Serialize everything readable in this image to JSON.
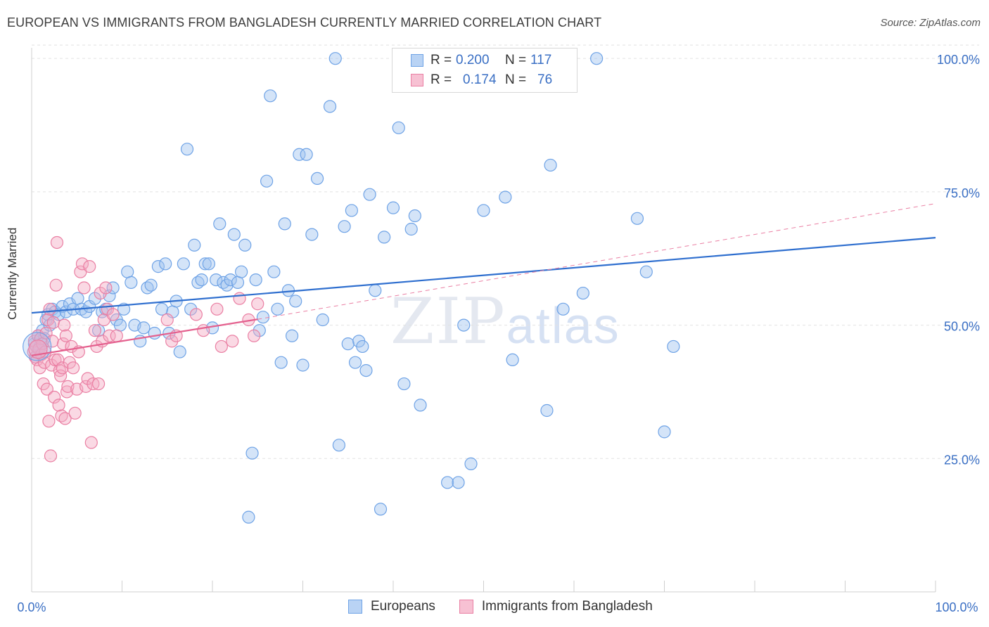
{
  "title": "EUROPEAN VS IMMIGRANTS FROM BANGLADESH CURRENTLY MARRIED CORRELATION CHART",
  "source": "Source: ZipAtlas.com",
  "watermark": {
    "zip": "ZIP",
    "atlas": "atlas"
  },
  "legend": {
    "r_label": "R =",
    "n_label": "N =",
    "series": [
      {
        "name": "Europeans",
        "r": "0.200",
        "n": "117",
        "color": "#6fa3e6",
        "fill": "#b9d3f4"
      },
      {
        "name": "Immigrants from Bangladesh",
        "r": "0.174",
        "n": "76",
        "color": "#ea7fa3",
        "fill": "#f7c1d3"
      }
    ]
  },
  "chart_data": {
    "type": "scatter",
    "title": "EUROPEAN VS IMMIGRANTS FROM BANGLADESH CURRENTLY MARRIED CORRELATION CHART",
    "xlabel": "",
    "ylabel": "Currently Married",
    "xlim": [
      0,
      100
    ],
    "ylim": [
      0,
      102
    ],
    "x_tick_labels": [
      "0.0%",
      "100.0%"
    ],
    "y_ticks": [
      25,
      50,
      75,
      100
    ],
    "y_tick_labels": [
      "25.0%",
      "50.0%",
      "75.0%",
      "100.0%"
    ],
    "grid": true,
    "series": [
      {
        "name": "Europeans",
        "color": "#6fa3e6",
        "trend": {
          "x": [
            0,
            100
          ],
          "y": [
            52.3,
            66.4
          ],
          "style": "solid"
        },
        "points": [
          [
            0.3,
            46.5
          ],
          [
            0.5,
            44
          ],
          [
            0.7,
            48
          ],
          [
            0.9,
            46
          ],
          [
            1.2,
            49
          ],
          [
            1.4,
            47.5
          ],
          [
            1.6,
            51
          ],
          [
            1.8,
            52
          ],
          [
            2.0,
            50
          ],
          [
            2.3,
            53
          ],
          [
            2.6,
            52.5
          ],
          [
            3.0,
            52
          ],
          [
            3.4,
            53.5
          ],
          [
            3.8,
            52.5
          ],
          [
            4.2,
            54
          ],
          [
            4.6,
            53
          ],
          [
            5.1,
            55
          ],
          [
            5.5,
            53
          ],
          [
            6.0,
            52.5
          ],
          [
            6.4,
            53.5
          ],
          [
            7.0,
            55
          ],
          [
            7.4,
            49
          ],
          [
            7.8,
            52.5
          ],
          [
            8.2,
            53
          ],
          [
            8.6,
            55.5
          ],
          [
            9.0,
            57
          ],
          [
            9.4,
            51
          ],
          [
            9.8,
            50
          ],
          [
            10.2,
            53
          ],
          [
            10.6,
            60
          ],
          [
            11.0,
            58
          ],
          [
            11.4,
            50
          ],
          [
            12.0,
            47
          ],
          [
            12.4,
            49.5
          ],
          [
            12.8,
            57
          ],
          [
            13.2,
            57.5
          ],
          [
            13.6,
            48.5
          ],
          [
            14.0,
            61
          ],
          [
            14.4,
            53
          ],
          [
            14.8,
            61.5
          ],
          [
            15.2,
            48.5
          ],
          [
            15.6,
            52.5
          ],
          [
            16.0,
            54.5
          ],
          [
            16.4,
            45
          ],
          [
            16.8,
            61.5
          ],
          [
            17.2,
            83
          ],
          [
            17.6,
            53
          ],
          [
            18.0,
            65
          ],
          [
            18.4,
            58
          ],
          [
            18.8,
            58.5
          ],
          [
            19.2,
            61.5
          ],
          [
            19.6,
            61.5
          ],
          [
            20.0,
            49.5
          ],
          [
            20.4,
            58.5
          ],
          [
            20.8,
            69
          ],
          [
            21.2,
            58
          ],
          [
            21.6,
            57.5
          ],
          [
            22.0,
            58.5
          ],
          [
            22.4,
            67
          ],
          [
            22.8,
            58
          ],
          [
            23.2,
            60
          ],
          [
            23.6,
            65
          ],
          [
            24.0,
            14
          ],
          [
            24.4,
            26
          ],
          [
            24.8,
            58.5
          ],
          [
            25.2,
            49
          ],
          [
            25.6,
            51.5
          ],
          [
            26.0,
            77
          ],
          [
            26.4,
            93
          ],
          [
            26.8,
            60
          ],
          [
            27.2,
            53
          ],
          [
            27.6,
            43
          ],
          [
            28.0,
            69
          ],
          [
            28.4,
            56.5
          ],
          [
            28.8,
            48
          ],
          [
            29.2,
            54.5
          ],
          [
            29.6,
            82
          ],
          [
            30.0,
            42.5
          ],
          [
            30.4,
            82
          ],
          [
            31.0,
            67
          ],
          [
            31.6,
            77.5
          ],
          [
            32.2,
            51
          ],
          [
            33.0,
            91
          ],
          [
            33.6,
            100
          ],
          [
            34.0,
            27.5
          ],
          [
            34.6,
            68.5
          ],
          [
            35.0,
            46.5
          ],
          [
            35.4,
            71.5
          ],
          [
            35.8,
            43
          ],
          [
            36.2,
            47
          ],
          [
            36.6,
            46
          ],
          [
            37.0,
            41.5
          ],
          [
            37.4,
            74.5
          ],
          [
            38.0,
            56.5
          ],
          [
            38.6,
            15.5
          ],
          [
            39.0,
            66.5
          ],
          [
            40.0,
            72
          ],
          [
            40.6,
            87
          ],
          [
            41.2,
            39
          ],
          [
            42.0,
            68
          ],
          [
            42.4,
            70.5
          ],
          [
            43.0,
            35
          ],
          [
            46.0,
            20.5
          ],
          [
            47.2,
            20.5
          ],
          [
            47.8,
            50
          ],
          [
            48.6,
            24
          ],
          [
            50.0,
            71.5
          ],
          [
            52.4,
            74
          ],
          [
            53.2,
            43.5
          ],
          [
            57.0,
            34
          ],
          [
            57.4,
            80
          ],
          [
            58.8,
            53
          ],
          [
            62.5,
            100
          ],
          [
            67.0,
            70
          ],
          [
            61.0,
            56
          ],
          [
            68.0,
            60
          ],
          [
            70.0,
            30
          ],
          [
            71.0,
            46
          ]
        ]
      },
      {
        "name": "Immigrants from Bangladesh",
        "color": "#ea7fa3",
        "trend": {
          "x": [
            0,
            25
          ],
          "y": [
            44.3,
            51.1
          ],
          "style": "solid",
          "extended": {
            "x": [
              25,
              100
            ],
            "y": [
              51.1,
              72.8
            ],
            "style": "dashed"
          }
        },
        "points": [
          [
            0.2,
            45
          ],
          [
            0.3,
            47
          ],
          [
            0.4,
            44
          ],
          [
            0.5,
            46
          ],
          [
            0.6,
            43.5
          ],
          [
            0.7,
            48
          ],
          [
            0.8,
            45.5
          ],
          [
            0.9,
            42
          ],
          [
            1.0,
            47.5
          ],
          [
            1.1,
            44.5
          ],
          [
            1.2,
            46.5
          ],
          [
            1.3,
            39
          ],
          [
            1.4,
            43
          ],
          [
            1.5,
            45
          ],
          [
            1.6,
            48.5
          ],
          [
            1.7,
            38
          ],
          [
            1.8,
            51
          ],
          [
            1.9,
            32
          ],
          [
            2.0,
            53
          ],
          [
            2.1,
            25.5
          ],
          [
            2.2,
            42.5
          ],
          [
            2.3,
            47
          ],
          [
            2.4,
            50.5
          ],
          [
            2.5,
            36.5
          ],
          [
            2.6,
            43.5
          ],
          [
            2.7,
            57.5
          ],
          [
            2.8,
            65.5
          ],
          [
            2.9,
            43.5
          ],
          [
            3.0,
            35
          ],
          [
            3.1,
            41.5
          ],
          [
            3.2,
            40.5
          ],
          [
            3.3,
            33
          ],
          [
            3.4,
            42
          ],
          [
            3.5,
            46.5
          ],
          [
            3.6,
            50
          ],
          [
            3.7,
            32.5
          ],
          [
            3.8,
            48
          ],
          [
            3.9,
            37.5
          ],
          [
            4.0,
            38.5
          ],
          [
            4.2,
            43
          ],
          [
            4.4,
            46
          ],
          [
            4.6,
            42
          ],
          [
            4.8,
            33.5
          ],
          [
            5.0,
            38
          ],
          [
            5.2,
            45
          ],
          [
            5.4,
            60
          ],
          [
            5.6,
            61.5
          ],
          [
            5.8,
            57
          ],
          [
            6.0,
            38.5
          ],
          [
            6.2,
            40
          ],
          [
            6.4,
            61
          ],
          [
            6.6,
            28
          ],
          [
            6.8,
            39
          ],
          [
            7.0,
            49
          ],
          [
            7.2,
            46
          ],
          [
            7.4,
            39
          ],
          [
            7.6,
            56
          ],
          [
            7.8,
            47
          ],
          [
            8.0,
            51
          ],
          [
            8.2,
            57
          ],
          [
            8.4,
            53
          ],
          [
            8.6,
            48
          ],
          [
            9.0,
            52
          ],
          [
            9.4,
            48
          ],
          [
            15.0,
            51
          ],
          [
            15.5,
            47
          ],
          [
            16.0,
            48
          ],
          [
            18.2,
            52
          ],
          [
            19.0,
            49
          ],
          [
            20.5,
            53
          ],
          [
            21.0,
            46
          ],
          [
            22.2,
            47
          ],
          [
            23.0,
            55
          ],
          [
            24.0,
            51
          ],
          [
            24.6,
            48
          ],
          [
            25.0,
            54
          ]
        ]
      }
    ]
  }
}
